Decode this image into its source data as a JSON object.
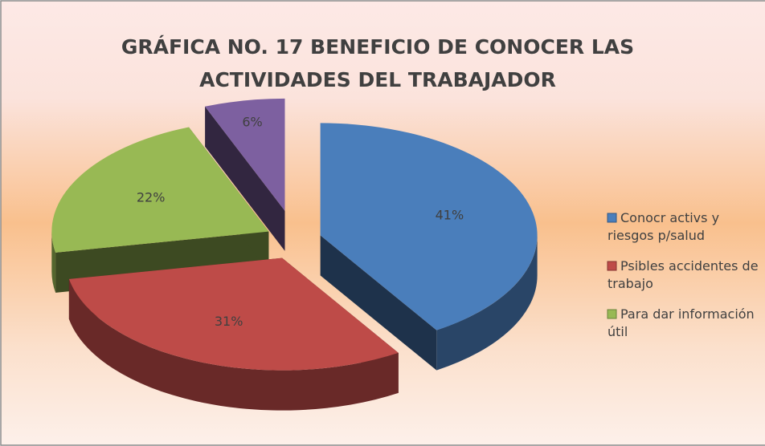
{
  "chart_data": {
    "type": "pie3d",
    "title": [
      "GRÁFICA NO. 17 BENEFICIO DE CONOCER LAS",
      "ACTIVIDADES DEL TRABAJADOR"
    ],
    "categories": [
      "Conocr activs y riesgos p/salud",
      "Psibles accidentes de trabajo",
      "Para dar información útil",
      null
    ],
    "values": [
      41,
      31,
      22,
      6
    ],
    "value_labels": [
      "41%",
      "31%",
      "22%",
      "6%"
    ],
    "colors": [
      "#4a7ebb",
      "#be4b48",
      "#98b954",
      "#7d60a0"
    ],
    "legend": "right"
  }
}
